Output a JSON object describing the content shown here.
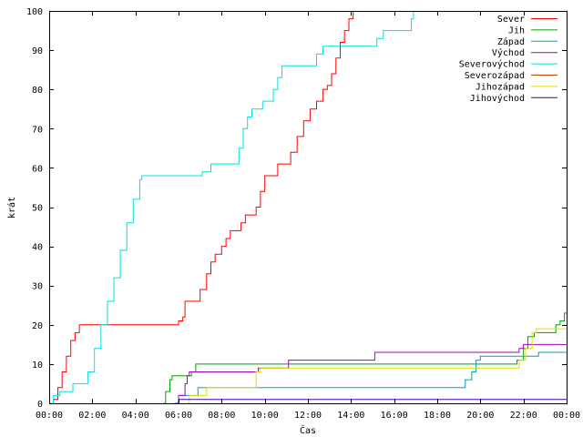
{
  "chart_data": {
    "type": "line",
    "xlabel": "Čas",
    "ylabel": "krát",
    "xlim": [
      0,
      24
    ],
    "ylim": [
      0,
      100
    ],
    "x_ticks": [
      {
        "value": 0,
        "label": "00:00"
      },
      {
        "value": 2,
        "label": "02:00"
      },
      {
        "value": 4,
        "label": "04:00"
      },
      {
        "value": 6,
        "label": "06:00"
      },
      {
        "value": 8,
        "label": "08:00"
      },
      {
        "value": 10,
        "label": "10:00"
      },
      {
        "value": 12,
        "label": "12:00"
      },
      {
        "value": 14,
        "label": "14:00"
      },
      {
        "value": 16,
        "label": "16:00"
      },
      {
        "value": 18,
        "label": "18:00"
      },
      {
        "value": 20,
        "label": "20:00"
      },
      {
        "value": 22,
        "label": "22:00"
      },
      {
        "value": 24,
        "label": "00:00"
      }
    ],
    "y_ticks": [
      0,
      10,
      20,
      30,
      40,
      50,
      60,
      70,
      80,
      90,
      100
    ],
    "grid": false,
    "legend_position": "top-right",
    "series": [
      {
        "name": "Sever",
        "color": "#ff0000",
        "points": [
          [
            0,
            0
          ],
          [
            0.2,
            1
          ],
          [
            0.4,
            4
          ],
          [
            0.6,
            8
          ],
          [
            0.8,
            12
          ],
          [
            1.0,
            16
          ],
          [
            1.2,
            18
          ],
          [
            1.4,
            20
          ],
          [
            2.5,
            20
          ],
          [
            3.5,
            20
          ],
          [
            5.9,
            20
          ],
          [
            6.0,
            21
          ],
          [
            6.2,
            22
          ],
          [
            6.3,
            26
          ],
          [
            6.9,
            26
          ],
          [
            7.0,
            29
          ],
          [
            7.3,
            33
          ],
          [
            7.5,
            36
          ],
          [
            7.7,
            38
          ],
          [
            8.0,
            40
          ],
          [
            8.2,
            42
          ],
          [
            8.4,
            44
          ],
          [
            8.7,
            44
          ],
          [
            8.9,
            46
          ],
          [
            9.1,
            48
          ],
          [
            9.4,
            48
          ],
          [
            9.6,
            50
          ],
          [
            9.8,
            54
          ],
          [
            10.0,
            58
          ],
          [
            10.4,
            58
          ],
          [
            10.6,
            61
          ],
          [
            11.0,
            61
          ],
          [
            11.2,
            64
          ],
          [
            11.5,
            68
          ],
          [
            11.8,
            72
          ],
          [
            12.1,
            75
          ],
          [
            12.4,
            77
          ],
          [
            12.7,
            80
          ],
          [
            12.9,
            81
          ],
          [
            13.1,
            84
          ],
          [
            13.3,
            88
          ],
          [
            13.5,
            92
          ],
          [
            13.7,
            95
          ],
          [
            13.9,
            98
          ],
          [
            14.1,
            100
          ]
        ]
      },
      {
        "name": "Jih",
        "color": "#00a000",
        "points": [
          [
            5.3,
            0
          ],
          [
            5.4,
            3
          ],
          [
            5.6,
            6
          ],
          [
            5.7,
            7
          ],
          [
            6.3,
            7
          ],
          [
            6.6,
            8
          ],
          [
            6.8,
            10
          ],
          [
            10.0,
            10
          ],
          [
            14.0,
            10
          ],
          [
            18.0,
            10
          ],
          [
            21.6,
            10
          ],
          [
            21.7,
            11
          ],
          [
            22.0,
            14
          ],
          [
            22.2,
            17
          ],
          [
            22.5,
            18
          ],
          [
            23.3,
            18
          ],
          [
            23.5,
            20
          ],
          [
            23.7,
            21
          ],
          [
            23.9,
            23
          ],
          [
            24,
            23
          ]
        ]
      },
      {
        "name": "Západ",
        "color": "#00a0c0",
        "points": [
          [
            5.8,
            0
          ],
          [
            6.0,
            2
          ],
          [
            6.8,
            2
          ],
          [
            6.9,
            4
          ],
          [
            12.0,
            4
          ],
          [
            16.0,
            4
          ],
          [
            19.2,
            4
          ],
          [
            19.3,
            6
          ],
          [
            19.6,
            8
          ],
          [
            19.8,
            11
          ],
          [
            20.0,
            12
          ],
          [
            22.4,
            12
          ],
          [
            22.7,
            13
          ],
          [
            24,
            13
          ]
        ]
      },
      {
        "name": "Východ",
        "color": "#a000c0",
        "points": [
          [
            5.9,
            0
          ],
          [
            6.0,
            2
          ],
          [
            6.3,
            5
          ],
          [
            6.4,
            7
          ],
          [
            6.5,
            8
          ],
          [
            9.6,
            8
          ],
          [
            9.7,
            9
          ],
          [
            11.0,
            9
          ],
          [
            11.1,
            11
          ],
          [
            15.0,
            11
          ],
          [
            15.1,
            13
          ],
          [
            21.5,
            13
          ],
          [
            21.8,
            14
          ],
          [
            22.0,
            15
          ],
          [
            23.0,
            15
          ],
          [
            23.1,
            15
          ],
          [
            24,
            15
          ]
        ]
      },
      {
        "name": "Severovýchod",
        "color": "#00e0e0",
        "points": [
          [
            0,
            0
          ],
          [
            0.2,
            2
          ],
          [
            0.5,
            3
          ],
          [
            1.0,
            3
          ],
          [
            1.1,
            5
          ],
          [
            1.5,
            5
          ],
          [
            1.8,
            8
          ],
          [
            2.1,
            14
          ],
          [
            2.4,
            20
          ],
          [
            2.7,
            26
          ],
          [
            3.0,
            32
          ],
          [
            3.3,
            39
          ],
          [
            3.6,
            46
          ],
          [
            3.9,
            52
          ],
          [
            4.2,
            57
          ],
          [
            4.3,
            58
          ],
          [
            7.0,
            58
          ],
          [
            7.1,
            59
          ],
          [
            7.4,
            59
          ],
          [
            7.5,
            61
          ],
          [
            8.6,
            61
          ],
          [
            8.8,
            65
          ],
          [
            9.0,
            70
          ],
          [
            9.2,
            73
          ],
          [
            9.4,
            75
          ],
          [
            9.8,
            75
          ],
          [
            9.9,
            77
          ],
          [
            10.2,
            77
          ],
          [
            10.4,
            80
          ],
          [
            10.6,
            83
          ],
          [
            10.8,
            86
          ],
          [
            11.5,
            86
          ],
          [
            12.3,
            86
          ],
          [
            12.4,
            89
          ],
          [
            12.7,
            91
          ],
          [
            14.0,
            91
          ],
          [
            15.0,
            91
          ],
          [
            15.2,
            93
          ],
          [
            15.5,
            95
          ],
          [
            16.6,
            95
          ],
          [
            16.8,
            98
          ],
          [
            16.9,
            100
          ]
        ]
      },
      {
        "name": "Severozápad",
        "color": "#c04000",
        "points": []
      },
      {
        "name": "Jihozápad",
        "color": "#e0e000",
        "points": [
          [
            6.4,
            0
          ],
          [
            6.5,
            2
          ],
          [
            7.1,
            2
          ],
          [
            7.3,
            4
          ],
          [
            9.4,
            4
          ],
          [
            9.6,
            8
          ],
          [
            9.8,
            9
          ],
          [
            14.0,
            9
          ],
          [
            19.0,
            9
          ],
          [
            21.6,
            9
          ],
          [
            21.8,
            11
          ],
          [
            22.1,
            14
          ],
          [
            22.4,
            18
          ],
          [
            22.6,
            19
          ],
          [
            24,
            19
          ]
        ]
      },
      {
        "name": "Jihovýchod",
        "color": "#4000a0",
        "points": [
          [
            5.9,
            0
          ],
          [
            6.0,
            1
          ],
          [
            6.3,
            1
          ],
          [
            24,
            1
          ]
        ]
      }
    ]
  }
}
